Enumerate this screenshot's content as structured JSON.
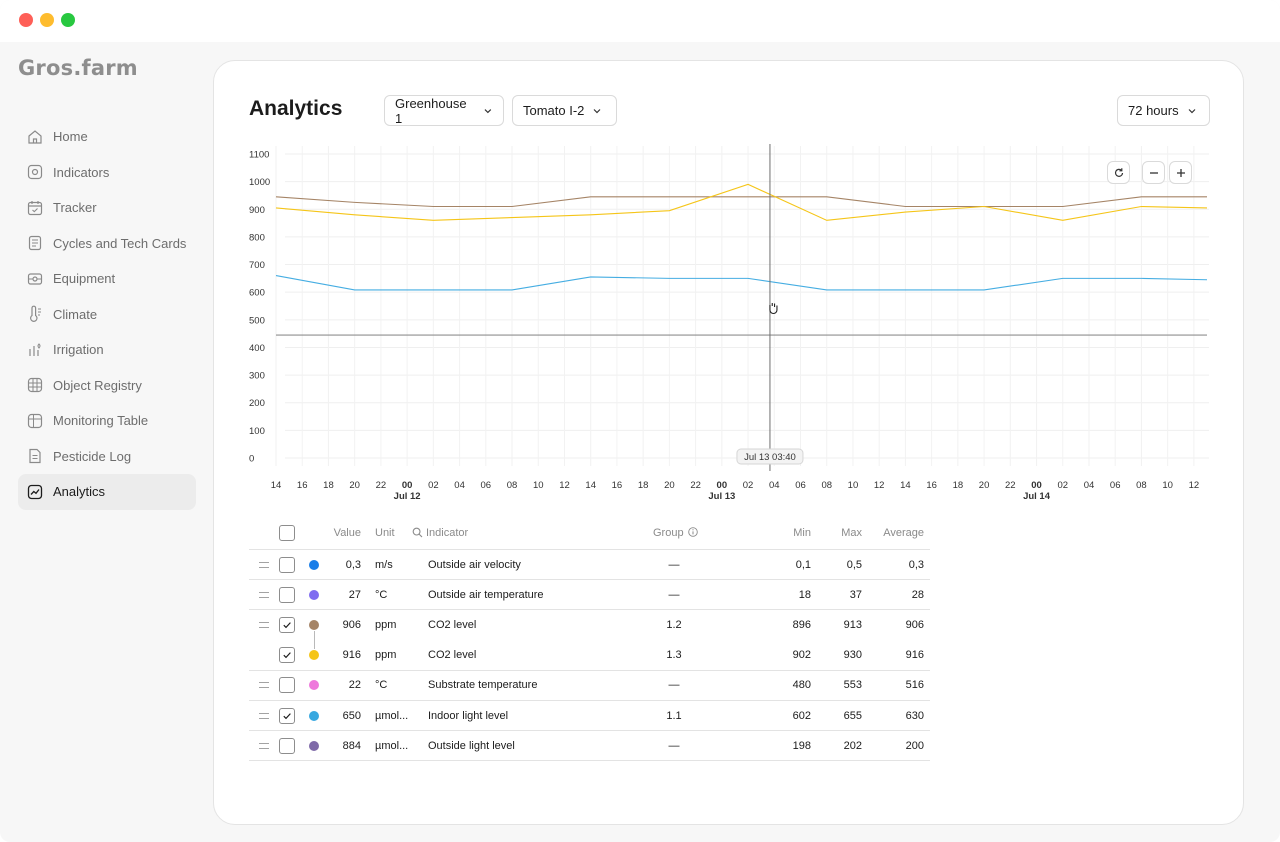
{
  "app": {
    "logo": "Gros.farm"
  },
  "sidebar": {
    "items": [
      {
        "label": "Home",
        "icon": "home-icon"
      },
      {
        "label": "Indicators",
        "icon": "indicators-icon"
      },
      {
        "label": "Tracker",
        "icon": "calendar-icon"
      },
      {
        "label": "Cycles and Tech Cards",
        "icon": "cards-icon"
      },
      {
        "label": "Equipment",
        "icon": "equipment-icon"
      },
      {
        "label": "Climate",
        "icon": "thermometer-icon"
      },
      {
        "label": "Irrigation",
        "icon": "irrigation-icon"
      },
      {
        "label": "Object Registry",
        "icon": "grid-icon"
      },
      {
        "label": "Monitoring Table",
        "icon": "table-icon"
      },
      {
        "label": "Pesticide Log",
        "icon": "log-icon"
      },
      {
        "label": "Analytics",
        "icon": "analytics-icon",
        "active": true
      }
    ]
  },
  "header": {
    "title": "Analytics",
    "greenhouse": "Greenhouse 1",
    "crop": "Tomato I-2",
    "range": "72 hours"
  },
  "chart_data": {
    "type": "line",
    "ylim": [
      0,
      1100
    ],
    "yticks": [
      "0",
      "100",
      "200",
      "300",
      "400",
      "500",
      "600",
      "700",
      "800",
      "900",
      "1000",
      "1100"
    ],
    "xticks": [
      "14",
      "16",
      "18",
      "20",
      "22",
      "00",
      "02",
      "04",
      "06",
      "08",
      "10",
      "12",
      "14",
      "16",
      "18",
      "20",
      "22",
      "00",
      "02",
      "04",
      "06",
      "08",
      "10",
      "12",
      "14",
      "16",
      "18",
      "20",
      "22",
      "00",
      "02",
      "04",
      "06",
      "08",
      "10",
      "12"
    ],
    "date_labels": [
      {
        "label": "Jul 12",
        "tick": "00"
      },
      {
        "label": "Jul 13",
        "tick": "00"
      },
      {
        "label": "Jul 14",
        "tick": "00"
      }
    ],
    "cursor_label": "Jul 13 03:40",
    "x_hours": [
      0,
      6,
      12,
      18,
      24,
      30,
      36,
      42,
      48,
      54,
      60,
      66,
      71
    ],
    "series": [
      {
        "color": "#a58466",
        "values": [
          945,
          925,
          910,
          910,
          945,
          945,
          945,
          945,
          910,
          910,
          910,
          945,
          945
        ]
      },
      {
        "color": "#f5c518",
        "values": [
          905,
          880,
          860,
          870,
          880,
          895,
          990,
          860,
          890,
          910,
          860,
          910,
          905
        ]
      },
      {
        "color": "#45ade2",
        "values": [
          660,
          608,
          608,
          608,
          655,
          650,
          650,
          608,
          608,
          608,
          650,
          650,
          645
        ]
      },
      {
        "color": "#8f8f8f",
        "values": [
          445,
          445,
          445,
          445,
          445,
          445,
          445,
          445,
          445,
          445,
          445,
          445,
          445
        ]
      }
    ]
  },
  "table": {
    "headers": {
      "value": "Value",
      "unit": "Unit",
      "indicator": "Indicator",
      "group": "Group",
      "min": "Min",
      "max": "Max",
      "average": "Average"
    },
    "rows": [
      {
        "checked": false,
        "color": "#1a7ee8",
        "value": "0,3",
        "unit": "m/s",
        "indicator": "Outside air velocity",
        "group": "—",
        "min": "0,1",
        "max": "0,5",
        "average": "0,3"
      },
      {
        "checked": false,
        "color": "#7f6cf0",
        "value": "27",
        "unit": "°C",
        "indicator": "Outside air temperature",
        "group": "—",
        "min": "18",
        "max": "37",
        "average": "28"
      },
      {
        "checked": true,
        "color": "#a58466",
        "value": "906",
        "unit": "ppm",
        "indicator": "CO2 level",
        "group": "1.2",
        "min": "896",
        "max": "913",
        "average": "906"
      },
      {
        "checked": true,
        "color": "#f5c518",
        "value": "916",
        "unit": "ppm",
        "indicator": "CO2 level",
        "group": "1.3",
        "min": "902",
        "max": "930",
        "average": "916"
      },
      {
        "checked": false,
        "color": "#ee78dc",
        "value": "22",
        "unit": "°C",
        "indicator": "Substrate temperature",
        "group": "—",
        "min": "480",
        "max": "553",
        "average": "516"
      },
      {
        "checked": true,
        "color": "#38a8e0",
        "value": "650",
        "unit": "µmol...",
        "indicator": "Indoor light level",
        "group": "1.1",
        "min": "602",
        "max": "655",
        "average": "630"
      },
      {
        "checked": false,
        "color": "#7f6aa8",
        "value": "884",
        "unit": "µmol...",
        "indicator": "Outside light level",
        "group": "—",
        "min": "198",
        "max": "202",
        "average": "200"
      }
    ]
  }
}
